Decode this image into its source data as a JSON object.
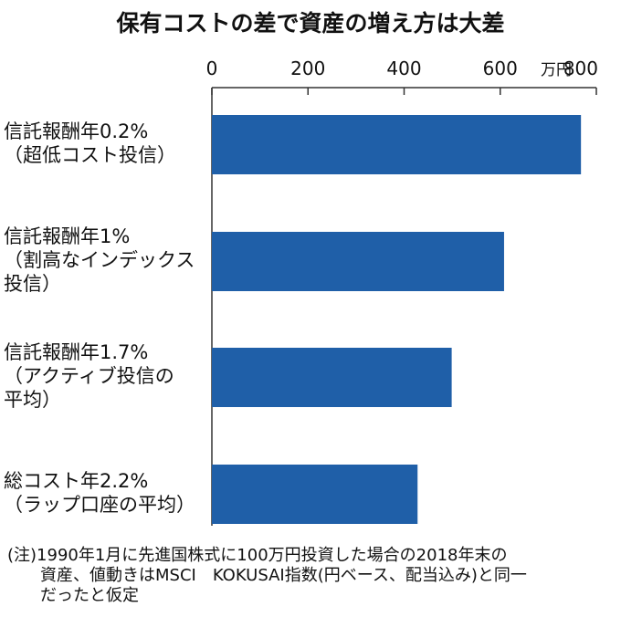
{
  "chart_data": {
    "type": "bar",
    "orientation": "horizontal",
    "title": "保有コストの差で資産の増え方は大差",
    "unit_label": "万円",
    "xlim": [
      0,
      800
    ],
    "ticks": [
      0,
      200,
      400,
      600,
      800
    ],
    "tick_labels": [
      "0",
      "200",
      "400",
      "600",
      "800"
    ],
    "categories": [
      [
        "信託報酬年0.2%",
        "（超低コスト投信）"
      ],
      [
        "信託報酬年1%",
        "（割高なインデックス",
        "投信）"
      ],
      [
        "信託報酬年1.7%",
        "（アクティブ投信の",
        "平均）"
      ],
      [
        "総コスト年2.2%",
        "（ラップ口座の平均）"
      ]
    ],
    "values": [
      768,
      608,
      499,
      428
    ],
    "bar_color": "#1f5fa8",
    "grid": false
  },
  "note": [
    "(注)1990年1月に先進国株式に100万円投資した場合の2018年末の",
    "　　資産、値動きはMSCI　KOKUSAI指数(円ベース、配当込み)と同一",
    "　　だったと仮定"
  ]
}
